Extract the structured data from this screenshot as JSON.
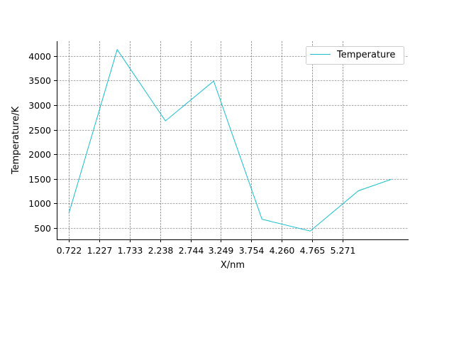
{
  "chart_data": {
    "type": "line",
    "title": "",
    "xlabel": "X/nm",
    "ylabel": "Temperature/K",
    "xlim": [
      0.52,
      6.37
    ],
    "ylim": [
      270,
      4300
    ],
    "x_ticks": [
      0.722,
      1.227,
      1.733,
      2.238,
      2.744,
      3.249,
      3.754,
      4.26,
      4.765,
      5.271
    ],
    "x_tick_labels": [
      "0.722",
      "1.227",
      "1.733",
      "2.238",
      "2.744",
      "3.249",
      "3.754",
      "4.260",
      "4.765",
      "5.271"
    ],
    "y_ticks": [
      500,
      1000,
      1500,
      2000,
      2500,
      3000,
      3500,
      4000
    ],
    "y_tick_labels": [
      "500",
      "1000",
      "1500",
      "2000",
      "2500",
      "3000",
      "3500",
      "4000"
    ],
    "grid": true,
    "legend_position": "top-right",
    "series": [
      {
        "name": "Temperature",
        "color": "#17becf",
        "x": [
          0.722,
          1.525,
          2.327,
          3.129,
          3.932,
          4.734,
          5.536,
          6.08
        ],
        "y": [
          800,
          4130,
          2680,
          3490,
          680,
          440,
          1260,
          1490
        ]
      }
    ]
  }
}
